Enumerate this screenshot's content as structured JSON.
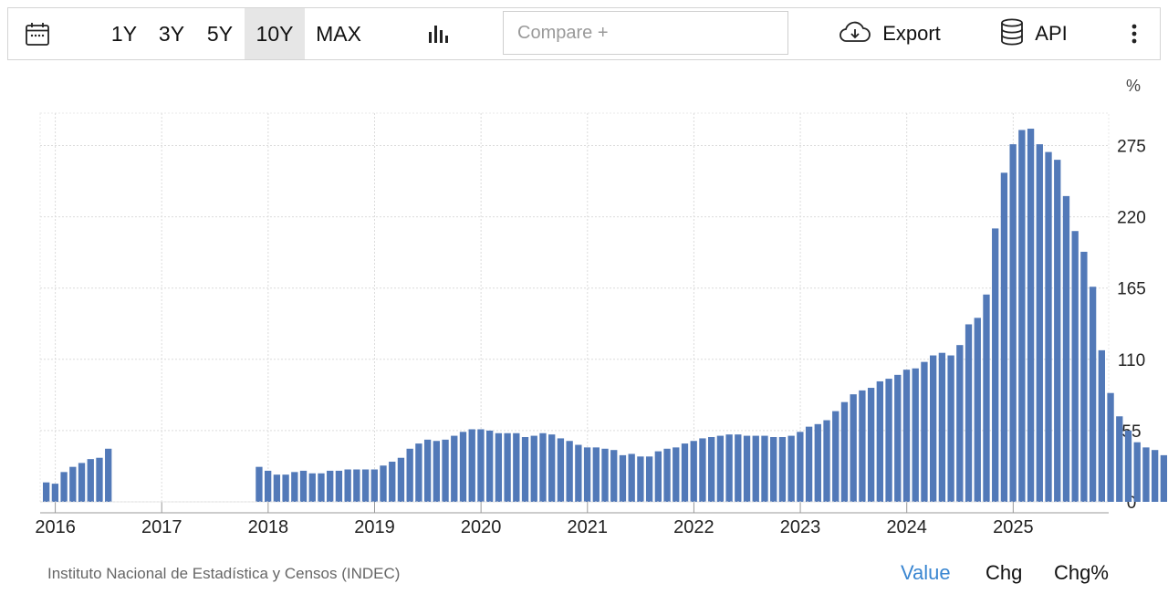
{
  "toolbar": {
    "calendar_icon": "calendar-icon",
    "ranges": [
      {
        "label": "1Y",
        "active": false
      },
      {
        "label": "3Y",
        "active": false
      },
      {
        "label": "5Y",
        "active": false
      },
      {
        "label": "10Y",
        "active": true
      },
      {
        "label": "MAX",
        "active": false
      }
    ],
    "chart_type_icon": "bar-chart-icon",
    "compare_placeholder": "Compare +",
    "export_label": "Export",
    "export_icon": "cloud-download-icon",
    "api_label": "API",
    "api_icon": "database-icon",
    "more_icon": "more-vertical-icon"
  },
  "chart_data": {
    "type": "bar",
    "unit": "%",
    "color": "#5279b8",
    "ylim": [
      0,
      300
    ],
    "y_ticks": [
      0,
      55,
      110,
      165,
      220,
      275
    ],
    "x_ticks": [
      "2016",
      "2017",
      "2018",
      "2019",
      "2020",
      "2021",
      "2022",
      "2023",
      "2024",
      "2025"
    ],
    "x_start": "2015-12",
    "grid": true,
    "values": [
      15,
      14,
      23,
      27,
      30,
      33,
      34,
      41,
      null,
      null,
      null,
      null,
      null,
      null,
      null,
      null,
      null,
      null,
      null,
      null,
      null,
      null,
      null,
      null,
      27,
      24,
      21,
      21,
      23,
      24,
      22,
      22,
      24,
      24,
      25,
      25,
      25,
      25,
      28,
      31,
      34,
      41,
      45,
      48,
      47,
      48,
      51,
      54,
      56,
      56,
      55,
      53,
      53,
      53,
      50,
      51,
      53,
      52,
      49,
      47,
      44,
      42,
      42,
      41,
      40,
      36,
      37,
      35,
      35,
      39,
      41,
      42,
      45,
      47,
      49,
      50,
      51,
      52,
      52,
      51,
      51,
      51,
      50,
      50,
      51,
      54,
      58,
      60,
      63,
      70,
      77,
      83,
      86,
      88,
      93,
      95,
      98,
      102,
      103,
      108,
      113,
      115,
      113,
      121,
      137,
      142,
      160,
      211,
      254,
      276,
      287,
      288,
      276,
      270,
      264,
      236,
      209,
      193,
      166,
      117,
      84,
      66,
      55,
      46,
      42,
      40,
      36,
      33
    ]
  },
  "source": "Instituto Nacional de Estadística y Censos (INDEC)",
  "tabs": [
    {
      "label": "Value",
      "active": true
    },
    {
      "label": "Chg",
      "active": false
    },
    {
      "label": "Chg%",
      "active": false
    }
  ]
}
